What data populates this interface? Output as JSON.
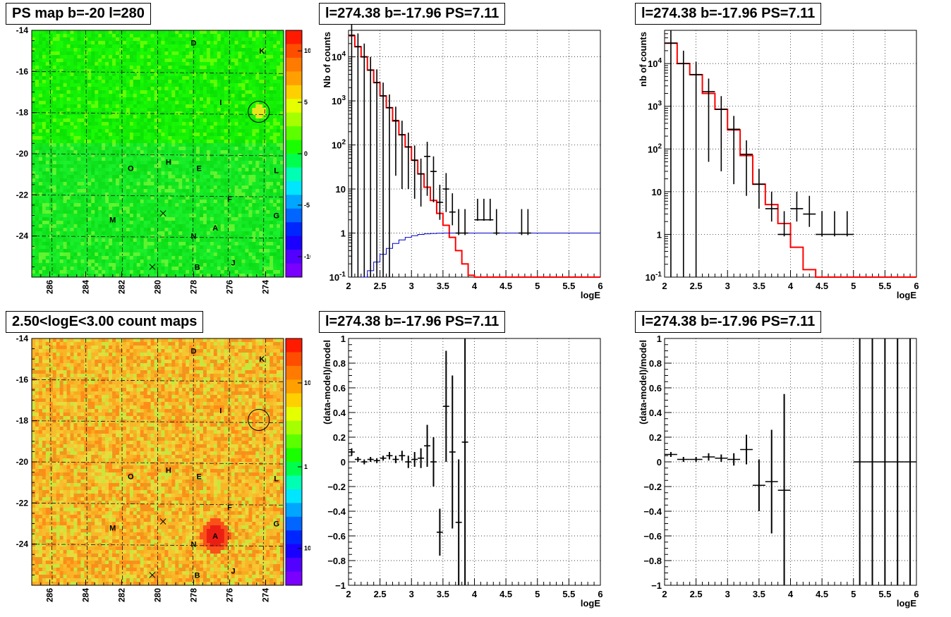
{
  "panels": {
    "map_top_title": "PS map b=-20 l=280",
    "map_bottom_title": "2.50<logE<3.00 count maps",
    "spec_title": "l=274.38 b=-17.96 PS=7.11",
    "spec2_title": "l=274.38 b=-17.96 PS=7.11",
    "res_title": "l=274.38 b=-17.96 PS=7.11",
    "res2_title": "l=274.38 b=-17.96 PS=7.11"
  },
  "colors": {
    "model": "#ff0000",
    "acceptance": "#0000cc",
    "data": "#000000"
  },
  "chart_data": [
    {
      "id": "ps_map",
      "type": "heatmap",
      "title": "PS map b=-20 l=280",
      "x_ticks": [
        "286",
        "284",
        "282",
        "280",
        "278",
        "276",
        "274"
      ],
      "y_ticks": [
        "-14",
        "-16",
        "-18",
        "-20",
        "-22",
        "-24"
      ],
      "xlim": [
        287,
        273
      ],
      "ylim": [
        -26,
        -14
      ],
      "colorbar_ticks": [
        "10",
        "5",
        "0",
        "-5",
        "-10"
      ],
      "colorbar_range": [
        -12,
        12
      ],
      "grid": "dashed",
      "sources": [
        {
          "label": "D",
          "l": 278.0,
          "b": -14.6
        },
        {
          "label": "K",
          "l": 274.2,
          "b": -15.0
        },
        {
          "label": "I",
          "l": 276.5,
          "b": -17.5
        },
        {
          "label": "O",
          "l": 281.5,
          "b": -20.7
        },
        {
          "label": "H",
          "l": 279.4,
          "b": -20.4
        },
        {
          "label": "E",
          "l": 277.7,
          "b": -20.7
        },
        {
          "label": "L",
          "l": 273.4,
          "b": -20.8
        },
        {
          "label": "F",
          "l": 276.0,
          "b": -22.2
        },
        {
          "label": "G",
          "l": 273.4,
          "b": -23.0
        },
        {
          "label": "M",
          "l": 282.5,
          "b": -23.2
        },
        {
          "label": "A",
          "l": 276.8,
          "b": -23.6
        },
        {
          "label": "N",
          "l": 278.0,
          "b": -24.0
        },
        {
          "label": "B",
          "l": 277.8,
          "b": -25.5
        },
        {
          "label": "J",
          "l": 275.8,
          "b": -25.3
        }
      ],
      "crosses": [
        {
          "l": 279.7,
          "b": -22.9
        },
        {
          "l": 280.3,
          "b": -25.5
        }
      ],
      "circle": {
        "l": 274.38,
        "b": -17.96
      }
    },
    {
      "id": "count_map",
      "type": "heatmap",
      "title": "2.50<logE<3.00 count maps",
      "x_ticks": [
        "286",
        "284",
        "282",
        "280",
        "278",
        "276",
        "274"
      ],
      "y_ticks": [
        "-14",
        "-16",
        "-18",
        "-20",
        "-22",
        "-24"
      ],
      "xlim": [
        287,
        273
      ],
      "ylim": [
        -26,
        -14
      ],
      "colorbar_ticks": [
        "10",
        "1",
        "10^-1"
      ],
      "colorbar_scale": "log",
      "grid": "dashed",
      "hotspot": {
        "label": "A",
        "l": 276.8,
        "b": -23.6
      },
      "sources": [
        {
          "label": "D",
          "l": 278.0,
          "b": -14.6
        },
        {
          "label": "K",
          "l": 274.2,
          "b": -15.0
        },
        {
          "label": "I",
          "l": 276.5,
          "b": -17.5
        },
        {
          "label": "O",
          "l": 281.5,
          "b": -20.7
        },
        {
          "label": "H",
          "l": 279.4,
          "b": -20.4
        },
        {
          "label": "E",
          "l": 277.7,
          "b": -20.7
        },
        {
          "label": "L",
          "l": 273.4,
          "b": -20.8
        },
        {
          "label": "F",
          "l": 276.0,
          "b": -22.2
        },
        {
          "label": "G",
          "l": 273.4,
          "b": -23.0
        },
        {
          "label": "M",
          "l": 282.5,
          "b": -23.2
        },
        {
          "label": "A",
          "l": 276.8,
          "b": -23.6
        },
        {
          "label": "N",
          "l": 278.0,
          "b": -24.0
        },
        {
          "label": "B",
          "l": 277.8,
          "b": -25.5
        },
        {
          "label": "J",
          "l": 275.8,
          "b": -25.3
        }
      ],
      "crosses": [
        {
          "l": 279.7,
          "b": -22.9
        },
        {
          "l": 280.3,
          "b": -25.5
        }
      ],
      "circle": {
        "l": 274.38,
        "b": -17.96
      }
    },
    {
      "id": "spectrum_fine",
      "type": "line",
      "title": "l=274.38 b=-17.96 PS=7.11",
      "xlabel": "logE",
      "ylabel": "Nb of counts",
      "xlim": [
        2,
        6
      ],
      "ylim": [
        0.1,
        40000
      ],
      "yscale": "log",
      "x_ticks": [
        "2",
        "2.5",
        "3",
        "3.5",
        "4",
        "4.5",
        "5",
        "5.5",
        "6"
      ],
      "y_ticks": [
        "10^-1",
        "1",
        "10",
        "10^2",
        "10^3",
        "10^4"
      ],
      "grid": true,
      "series": [
        {
          "kind": "model",
          "bin_edges": [
            2.0,
            2.1,
            2.2,
            2.3,
            2.4,
            2.5,
            2.6,
            2.7,
            2.8,
            2.9,
            3.0,
            3.1,
            3.2,
            3.3,
            3.4,
            3.5,
            3.6,
            3.7,
            3.8,
            3.9,
            4.0,
            4.1,
            4.2,
            4.3,
            6.0
          ],
          "values": [
            30000,
            17000,
            10000,
            5000,
            2600,
            1300,
            700,
            350,
            170,
            90,
            45,
            22,
            11,
            5.5,
            2.8,
            1.5,
            0.8,
            0.4,
            0.2,
            0.11,
            0.06,
            0.03,
            0.015,
            0.01
          ]
        },
        {
          "kind": "acceptance",
          "bin_edges": [
            2.2,
            2.3,
            2.4,
            2.5,
            2.6,
            2.7,
            2.8,
            2.9,
            3.0,
            3.1,
            3.2,
            3.3,
            3.4,
            3.5,
            3.6,
            6.0
          ],
          "values": [
            0.1,
            0.14,
            0.22,
            0.33,
            0.45,
            0.58,
            0.7,
            0.8,
            0.87,
            0.93,
            0.96,
            0.98,
            0.99,
            1.0,
            1.0
          ]
        },
        {
          "kind": "data",
          "points": [
            {
              "x": 2.05,
              "y": 31000,
              "yerr_lo": 31000,
              "yerr_hi": 31000
            },
            {
              "x": 2.15,
              "y": 17000,
              "yerr_lo": 17000,
              "yerr_hi": 17000
            },
            {
              "x": 2.25,
              "y": 10000,
              "yerr_lo": 10000,
              "yerr_hi": 10000
            },
            {
              "x": 2.35,
              "y": 5000,
              "yerr_lo": 5000,
              "yerr_hi": 5000
            },
            {
              "x": 2.45,
              "y": 2600,
              "yerr_lo": 2600,
              "yerr_hi": 2600
            },
            {
              "x": 2.55,
              "y": 1300,
              "yerr_lo": 1300,
              "yerr_hi": 1300
            },
            {
              "x": 2.65,
              "y": 700,
              "yerr_lo": 700,
              "yerr_hi": 700
            },
            {
              "x": 2.75,
              "y": 360,
              "yerr_lo": 340,
              "yerr_hi": 380
            },
            {
              "x": 2.85,
              "y": 170,
              "yerr_lo": 160,
              "yerr_hi": 185
            },
            {
              "x": 2.95,
              "y": 90,
              "yerr_lo": 80,
              "yerr_hi": 100
            },
            {
              "x": 3.05,
              "y": 45,
              "yerr_lo": 39,
              "yerr_hi": 52
            },
            {
              "x": 3.15,
              "y": 22,
              "yerr_lo": 18,
              "yerr_hi": 27
            },
            {
              "x": 3.25,
              "y": 55,
              "yerr_lo": 48,
              "yerr_hi": 63
            },
            {
              "x": 3.35,
              "y": 25,
              "yerr_lo": 20,
              "yerr_hi": 30
            },
            {
              "x": 3.45,
              "y": 5,
              "yerr_lo": 3,
              "yerr_hi": 7.5
            },
            {
              "x": 3.55,
              "y": 10,
              "yerr_lo": 7,
              "yerr_hi": 13
            },
            {
              "x": 3.65,
              "y": 3,
              "yerr_lo": 1.5,
              "yerr_hi": 5
            },
            {
              "x": 3.75,
              "y": 1,
              "yerr_lo": 0.1,
              "yerr_hi": 2.5
            },
            {
              "x": 3.85,
              "y": 1,
              "yerr_lo": 0.1,
              "yerr_hi": 2.5
            },
            {
              "x": 4.05,
              "y": 2,
              "yerr_lo": 0.1,
              "yerr_hi": 4
            },
            {
              "x": 4.15,
              "y": 2,
              "yerr_lo": 0.1,
              "yerr_hi": 4
            },
            {
              "x": 4.25,
              "y": 2,
              "yerr_lo": 0.1,
              "yerr_hi": 4
            },
            {
              "x": 4.35,
              "y": 1,
              "yerr_lo": 0.1,
              "yerr_hi": 2.5
            },
            {
              "x": 4.75,
              "y": 1,
              "yerr_lo": 0.1,
              "yerr_hi": 2.5
            },
            {
              "x": 4.85,
              "y": 1,
              "yerr_lo": 0.1,
              "yerr_hi": 2.5
            }
          ]
        }
      ]
    },
    {
      "id": "spectrum_coarse",
      "type": "line",
      "title": "l=274.38 b=-17.96 PS=7.11",
      "xlabel": "logE",
      "ylabel": "nb of counts",
      "xlim": [
        2,
        6
      ],
      "ylim": [
        0.1,
        60000
      ],
      "yscale": "log",
      "x_ticks": [
        "2",
        "2.5",
        "3",
        "3.5",
        "4",
        "4.5",
        "5",
        "5.5",
        "6"
      ],
      "y_ticks": [
        "10^-1",
        "1",
        "10",
        "10^2",
        "10^3",
        "10^4"
      ],
      "grid": true,
      "series": [
        {
          "kind": "model",
          "bin_edges": [
            2.0,
            2.2,
            2.4,
            2.6,
            2.8,
            3.0,
            3.2,
            3.4,
            3.6,
            3.8,
            4.0,
            4.2,
            4.4,
            6.0
          ],
          "values": [
            30000,
            10000,
            5500,
            2000,
            850,
            280,
            70,
            15,
            5,
            1.8,
            0.5,
            0.15,
            0.1
          ]
        },
        {
          "kind": "data",
          "points": [
            {
              "x": 2.1,
              "y": 30000,
              "yerr_lo": 30000,
              "yerr_hi": 30000
            },
            {
              "x": 2.3,
              "y": 10000,
              "yerr_lo": 10000,
              "yerr_hi": 10000
            },
            {
              "x": 2.5,
              "y": 5500,
              "yerr_lo": 5500,
              "yerr_hi": 5500
            },
            {
              "x": 2.7,
              "y": 2200,
              "yerr_lo": 2150,
              "yerr_hi": 2250
            },
            {
              "x": 2.9,
              "y": 850,
              "yerr_lo": 820,
              "yerr_hi": 880
            },
            {
              "x": 3.1,
              "y": 290,
              "yerr_lo": 275,
              "yerr_hi": 305
            },
            {
              "x": 3.3,
              "y": 75,
              "yerr_lo": 67,
              "yerr_hi": 84
            },
            {
              "x": 3.5,
              "y": 15,
              "yerr_lo": 11,
              "yerr_hi": 19
            },
            {
              "x": 3.7,
              "y": 4,
              "yerr_lo": 2,
              "yerr_hi": 6
            },
            {
              "x": 3.9,
              "y": 1,
              "yerr_lo": 0.1,
              "yerr_hi": 2.5
            },
            {
              "x": 4.1,
              "y": 4,
              "yerr_lo": 2,
              "yerr_hi": 6
            },
            {
              "x": 4.3,
              "y": 3,
              "yerr_lo": 1.5,
              "yerr_hi": 5
            },
            {
              "x": 4.5,
              "y": 1,
              "yerr_lo": 0.1,
              "yerr_hi": 2.5
            },
            {
              "x": 4.7,
              "y": 1,
              "yerr_lo": 0.1,
              "yerr_hi": 2.5
            },
            {
              "x": 4.9,
              "y": 1,
              "yerr_lo": 0.1,
              "yerr_hi": 2.5
            }
          ]
        }
      ]
    },
    {
      "id": "residual_fine",
      "type": "scatter",
      "title": "l=274.38 b=-17.96 PS=7.11",
      "xlabel": "logE",
      "ylabel": "(data-model)/model",
      "xlim": [
        2,
        6
      ],
      "ylim": [
        -1,
        1
      ],
      "x_ticks": [
        "2",
        "2.5",
        "3",
        "3.5",
        "4",
        "4.5",
        "5",
        "5.5",
        "6"
      ],
      "y_ticks": [
        "1",
        "0.8",
        "0.6",
        "0.4",
        "0.2",
        "0",
        "-0.2",
        "-0.4",
        "-0.6",
        "-0.8",
        "-1"
      ],
      "grid": true,
      "points": [
        {
          "x": 2.05,
          "y": 0.08,
          "err": 0.03
        },
        {
          "x": 2.15,
          "y": 0.02,
          "err": 0.02
        },
        {
          "x": 2.25,
          "y": 0.0,
          "err": 0.02
        },
        {
          "x": 2.35,
          "y": 0.02,
          "err": 0.02
        },
        {
          "x": 2.45,
          "y": 0.01,
          "err": 0.02
        },
        {
          "x": 2.55,
          "y": 0.03,
          "err": 0.02
        },
        {
          "x": 2.65,
          "y": 0.05,
          "err": 0.03
        },
        {
          "x": 2.75,
          "y": 0.02,
          "err": 0.03
        },
        {
          "x": 2.85,
          "y": 0.05,
          "err": 0.04
        },
        {
          "x": 2.95,
          "y": 0.0,
          "err": 0.05
        },
        {
          "x": 3.05,
          "y": 0.02,
          "err": 0.06
        },
        {
          "x": 3.15,
          "y": 0.03,
          "err": 0.08
        },
        {
          "x": 3.25,
          "y": 0.13,
          "err": 0.17
        },
        {
          "x": 3.35,
          "y": 0.0,
          "err": 0.2
        },
        {
          "x": 3.45,
          "y": -0.57,
          "err": 0.19
        },
        {
          "x": 3.55,
          "y": 0.45,
          "err": 0.45
        },
        {
          "x": 3.65,
          "y": 0.08,
          "err": 0.62
        },
        {
          "x": 3.75,
          "y": -0.49,
          "err": 0.51
        },
        {
          "x": 3.85,
          "y": 0.16,
          "err": 1.16
        }
      ]
    },
    {
      "id": "residual_coarse",
      "type": "scatter",
      "title": "l=274.38 b=-17.96 PS=7.11",
      "xlabel": "logE",
      "ylabel": "(data-model)/model",
      "xlim": [
        2,
        6
      ],
      "ylim": [
        -1,
        1
      ],
      "x_ticks": [
        "2",
        "2.5",
        "3",
        "3.5",
        "4",
        "4.5",
        "5",
        "5.5",
        "6"
      ],
      "y_ticks": [
        "1",
        "0.8",
        "0.6",
        "0.4",
        "0.2",
        "0",
        "-0.2",
        "-0.4",
        "-0.6",
        "-0.8",
        "-1"
      ],
      "grid": true,
      "points": [
        {
          "x": 2.1,
          "y": 0.06,
          "err": 0.02
        },
        {
          "x": 2.3,
          "y": 0.02,
          "err": 0.02
        },
        {
          "x": 2.5,
          "y": 0.02,
          "err": 0.02
        },
        {
          "x": 2.7,
          "y": 0.04,
          "err": 0.03
        },
        {
          "x": 2.9,
          "y": 0.03,
          "err": 0.03
        },
        {
          "x": 3.1,
          "y": 0.02,
          "err": 0.05
        },
        {
          "x": 3.3,
          "y": 0.1,
          "err": 0.12
        },
        {
          "x": 3.5,
          "y": -0.19,
          "err": 0.21
        },
        {
          "x": 3.7,
          "y": -0.16,
          "err": 0.42
        },
        {
          "x": 3.9,
          "y": -0.23,
          "err": 0.78
        },
        {
          "x": 5.1,
          "y": 0.0,
          "err": 2.0
        },
        {
          "x": 5.3,
          "y": 0.0,
          "err": 2.0
        },
        {
          "x": 5.5,
          "y": 0.0,
          "err": 2.0
        },
        {
          "x": 5.7,
          "y": 0.0,
          "err": 2.0
        },
        {
          "x": 5.9,
          "y": 0.0,
          "err": 2.0
        }
      ]
    }
  ]
}
